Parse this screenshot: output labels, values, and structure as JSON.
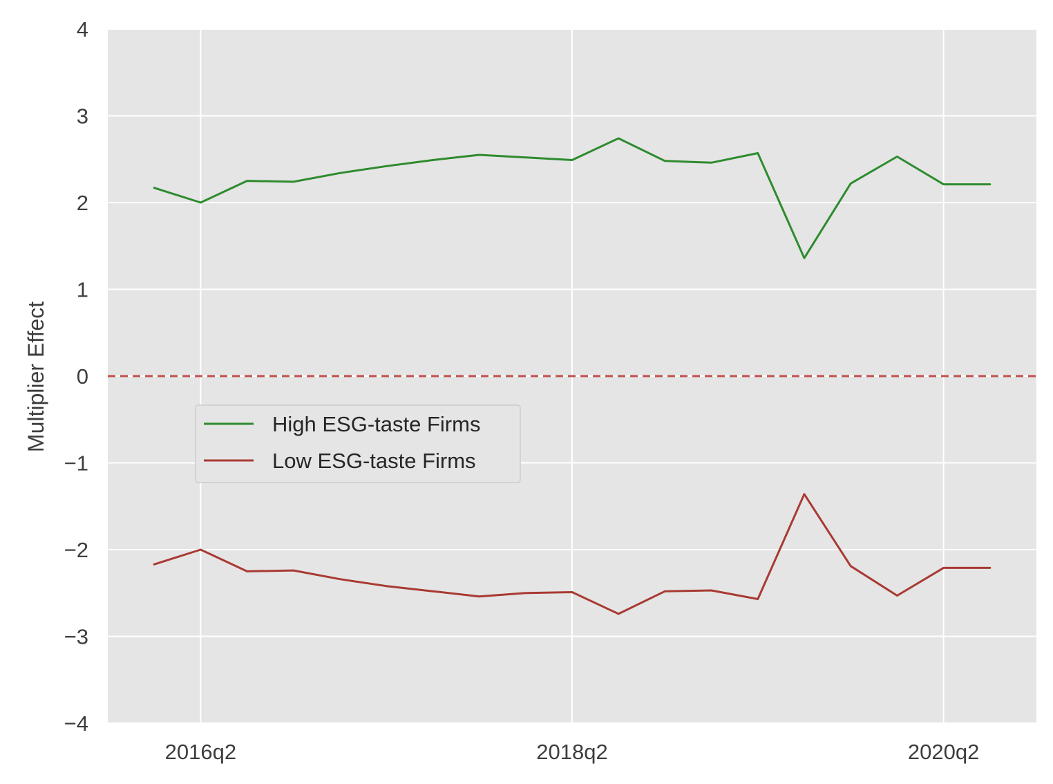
{
  "chart_data": {
    "type": "line",
    "title": "",
    "xlabel": "",
    "ylabel": "Multiplier Effect",
    "ylim": [
      -4,
      4
    ],
    "yticks": [
      4,
      3,
      2,
      1,
      0,
      -1,
      -2,
      -3,
      -4
    ],
    "ytick_labels": [
      "4",
      "3",
      "2",
      "1",
      "0",
      "−1",
      "−2",
      "−3",
      "−4"
    ],
    "x": [
      "2016q1",
      "2016q2",
      "2016q3",
      "2016q4",
      "2017q1",
      "2017q2",
      "2017q3",
      "2017q4",
      "2018q1",
      "2018q2",
      "2018q3",
      "2018q4",
      "2019q1",
      "2019q2",
      "2019q3",
      "2019q4",
      "2020q1",
      "2020q2",
      "2020q3"
    ],
    "xlim": [
      "2015q4",
      "2020q4"
    ],
    "xticks": [
      "2016q2",
      "2018q2",
      "2020q2"
    ],
    "xtick_labels": [
      "2016q2",
      "2018q2",
      "2020q2"
    ],
    "grid": true,
    "background": "#e5e5e5",
    "legend_position": "center-left",
    "reference_line": {
      "y": 0,
      "style": "dashed",
      "color": "#c0504d"
    },
    "series": [
      {
        "name": "High ESG-taste Firms",
        "color": "#2e8b2e",
        "values": [
          2.17,
          2.0,
          2.25,
          2.24,
          2.34,
          2.42,
          2.49,
          2.55,
          2.52,
          2.49,
          2.74,
          2.48,
          2.46,
          2.57,
          1.36,
          2.22,
          2.53,
          2.21,
          2.21
        ]
      },
      {
        "name": "Low ESG-taste Firms",
        "color": "#a83a32",
        "values": [
          -2.17,
          -2.0,
          -2.25,
          -2.24,
          -2.34,
          -2.42,
          -2.48,
          -2.54,
          -2.5,
          -2.49,
          -2.74,
          -2.48,
          -2.47,
          -2.57,
          -1.36,
          -2.19,
          -2.53,
          -2.21,
          -2.21
        ]
      }
    ]
  }
}
